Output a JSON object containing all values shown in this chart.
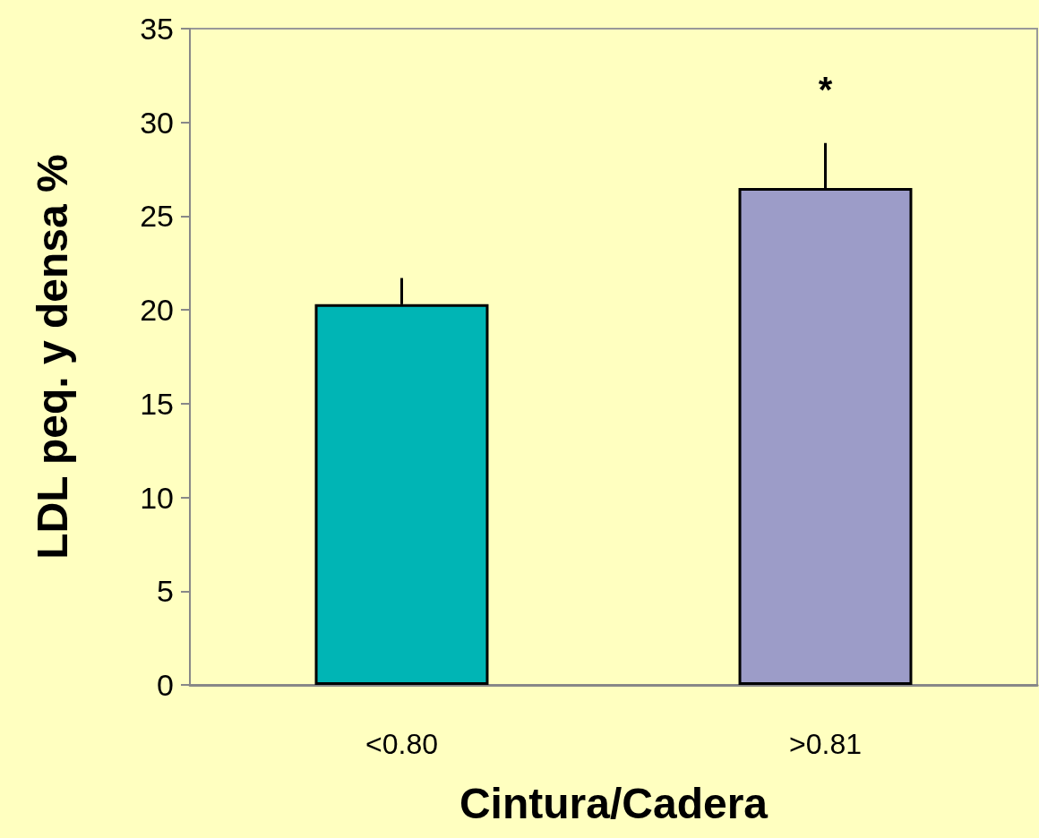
{
  "chart_data": {
    "type": "bar",
    "categories": [
      "<0.80",
      ">0.81"
    ],
    "values": [
      20.3,
      26.5
    ],
    "colors": [
      "#00b5b5",
      "#9c9cc8"
    ],
    "errors": [
      [
        20.3,
        21.7
      ],
      [
        26.5,
        28.9
      ]
    ],
    "ylim": [
      0,
      35
    ],
    "yticks": [
      0,
      5,
      10,
      15,
      20,
      25,
      30,
      35
    ],
    "xlabel": "Cintura/Cadera",
    "ylabel": "LDL peq. y densa %",
    "annotations": [
      "*"
    ],
    "grid": false
  }
}
